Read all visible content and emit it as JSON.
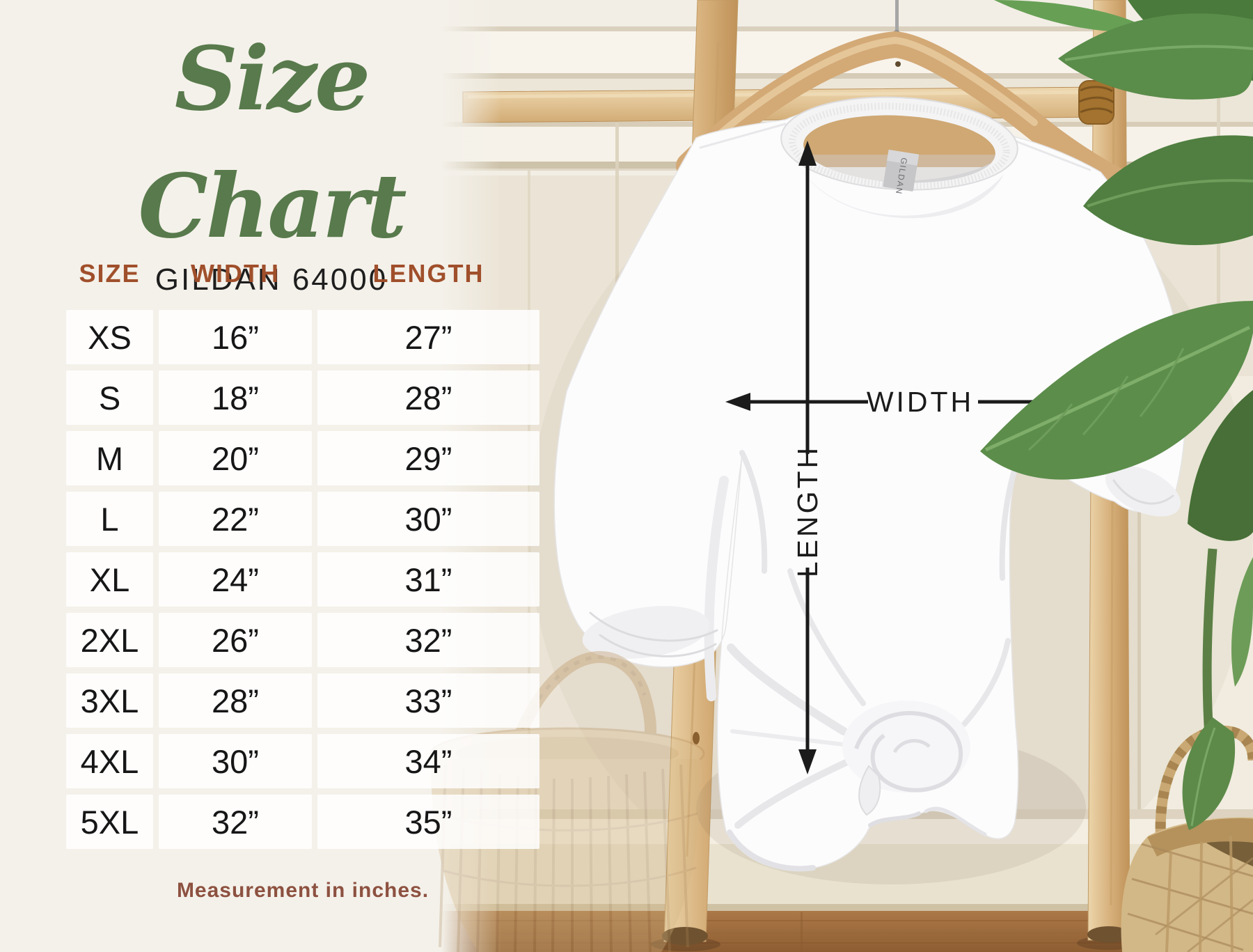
{
  "title": {
    "text": "Size Chart",
    "subtitle": "GILDAN 64000"
  },
  "size_table": {
    "headers": [
      "SIZE",
      "WIDTH",
      "LENGTH"
    ],
    "rows": [
      [
        "XS",
        "16”",
        "27”"
      ],
      [
        "S",
        "18”",
        "28”"
      ],
      [
        "M",
        "20”",
        "29”"
      ],
      [
        "L",
        "22”",
        "30”"
      ],
      [
        "XL",
        "24”",
        "31”"
      ],
      [
        "2XL",
        "26”",
        "32”"
      ],
      [
        "3XL",
        "28”",
        "33”"
      ],
      [
        "4XL",
        "30”",
        "34”"
      ],
      [
        "5XL",
        "32”",
        "35”"
      ]
    ]
  },
  "footnote": "Measurement in inches.",
  "diagram": {
    "width_label": "WIDTH",
    "length_label": "LENGTH",
    "shirt_brand_tag": "GILDAN"
  },
  "colors": {
    "title_green": "#587a4c",
    "header_rust": "#a04f2b",
    "footnote_brown": "#8d5140",
    "value_text": "#161616",
    "panel_cream": "#f4f1ea",
    "wood": "#d3a976",
    "leaf_green": "#5c8d4b",
    "floor_brown": "#a0703f",
    "arrow_black": "#1b1b1b"
  },
  "chart_data": {
    "type": "table",
    "title": "Size Chart",
    "subtitle": "GILDAN 64000",
    "columns": [
      "SIZE",
      "WIDTH",
      "LENGTH"
    ],
    "rows": [
      [
        "XS",
        16,
        27
      ],
      [
        "S",
        18,
        28
      ],
      [
        "M",
        20,
        29
      ],
      [
        "L",
        22,
        30
      ],
      [
        "XL",
        24,
        31
      ],
      [
        "2XL",
        26,
        32
      ],
      [
        "3XL",
        28,
        33
      ],
      [
        "4XL",
        30,
        34
      ],
      [
        "5XL",
        32,
        35
      ]
    ],
    "units": "inches",
    "note": "Measurement in inches."
  }
}
